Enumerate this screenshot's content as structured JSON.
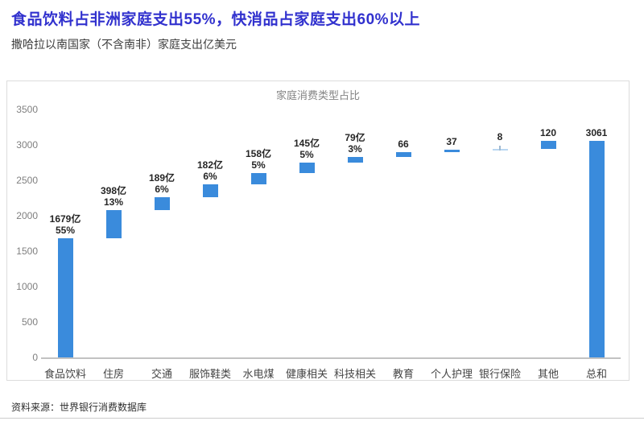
{
  "header": {
    "title": "食品饮料占非洲家庭支出55%，快消品占家庭支出60%以上",
    "subtitle": "撒哈拉以南国家（不含南非）家庭支出亿美元"
  },
  "colors": {
    "title_accent": "#3131CE",
    "bar": "#3A8BDC",
    "thin_bar": "#B9D7F2",
    "thin_tick": "#9FB9D0",
    "axis_line": "#C2C2C2",
    "chart_border": "#DCDCDC"
  },
  "chart_data": {
    "type": "bar",
    "subtype": "waterfall",
    "title": "家庭消费类型占比",
    "categories": [
      "食品饮料",
      "住房",
      "交通",
      "服饰鞋类",
      "水电煤",
      "健康相关",
      "科技相关",
      "教育",
      "个人护理",
      "银行保险",
      "其他",
      "总和"
    ],
    "values": [
      1679,
      398,
      189,
      182,
      158,
      145,
      79,
      66,
      37,
      8,
      120,
      3061
    ],
    "total_flags": [
      false,
      false,
      false,
      false,
      false,
      false,
      false,
      false,
      false,
      false,
      false,
      true
    ],
    "value_labels": [
      "1679亿",
      "398亿",
      "189亿",
      "182亿",
      "158亿",
      "145亿",
      "79亿",
      "66",
      "37",
      "8",
      "120",
      "3061"
    ],
    "pct_labels": [
      "55%",
      "13%",
      "6%",
      "6%",
      "5%",
      "5%",
      "3%",
      "",
      "",
      "",
      "",
      ""
    ],
    "xlabel": "",
    "ylabel": "",
    "ylim": [
      0,
      3500
    ],
    "yticks": [
      0,
      500,
      1000,
      1500,
      2000,
      2500,
      3000,
      3500
    ],
    "grid": false,
    "legend_position": "none",
    "bar_color": "#3A8BDC",
    "thin_bar_color": "#B9D7F2",
    "thin_tick_color": "#9FB9D0"
  },
  "footer": {
    "source": "资料来源：世界银行消费数据库"
  }
}
